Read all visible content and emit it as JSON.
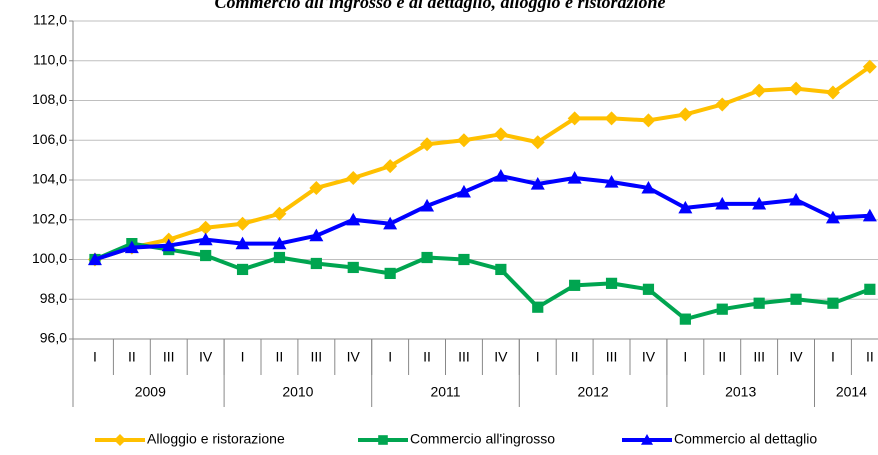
{
  "chart_data": {
    "type": "line",
    "title": "Commercio all'ingrosso e al dettaglio, alloggio e ristorazione",
    "categories": [
      "I",
      "II",
      "III",
      "IV",
      "I",
      "II",
      "III",
      "IV",
      "I",
      "II",
      "III",
      "IV",
      "I",
      "II",
      "III",
      "IV",
      "I",
      "II",
      "III",
      "IV",
      "I",
      "II"
    ],
    "groups": [
      {
        "label": "2009",
        "count": 4
      },
      {
        "label": "2010",
        "count": 4
      },
      {
        "label": "2011",
        "count": 4
      },
      {
        "label": "2012",
        "count": 4
      },
      {
        "label": "2013",
        "count": 4
      },
      {
        "label": "2014",
        "count": 2
      }
    ],
    "series": [
      {
        "name": "Alloggio e ristorazione",
        "color": "#ffc000",
        "marker": "diamond",
        "values": [
          100.0,
          100.6,
          101.0,
          101.6,
          101.8,
          102.3,
          103.6,
          104.1,
          104.7,
          105.8,
          106.0,
          106.3,
          105.9,
          107.1,
          107.1,
          107.0,
          107.3,
          107.8,
          108.5,
          108.6,
          108.4,
          109.7
        ]
      },
      {
        "name": "Commercio all'ingrosso",
        "color": "#00a550",
        "marker": "square",
        "values": [
          100.0,
          100.8,
          100.5,
          100.2,
          99.5,
          100.1,
          99.8,
          99.6,
          99.3,
          100.1,
          100.0,
          99.5,
          97.6,
          98.7,
          98.8,
          98.5,
          97.0,
          97.5,
          97.8,
          98.0,
          97.8,
          98.5
        ]
      },
      {
        "name": "Commercio al dettaglio",
        "color": "#0000ff",
        "marker": "triangle",
        "values": [
          100.0,
          100.6,
          100.7,
          101.0,
          100.8,
          100.8,
          101.2,
          102.0,
          101.8,
          102.7,
          103.4,
          104.2,
          103.8,
          104.1,
          103.9,
          103.6,
          102.6,
          102.8,
          102.8,
          103.0,
          102.1,
          102.2
        ]
      }
    ],
    "ylim": [
      96,
      112
    ],
    "yticks": [
      {
        "value": 96,
        "label": "96,0"
      },
      {
        "value": 98,
        "label": "98,0"
      },
      {
        "value": 100,
        "label": "100,0"
      },
      {
        "value": 102,
        "label": "102,0"
      },
      {
        "value": 104,
        "label": "104,0"
      },
      {
        "value": 106,
        "label": "106,0"
      },
      {
        "value": 108,
        "label": "108,0"
      },
      {
        "value": 110,
        "label": "110,0"
      },
      {
        "value": 112,
        "label": "112,0"
      }
    ],
    "grid": true,
    "legend": "bottom"
  }
}
